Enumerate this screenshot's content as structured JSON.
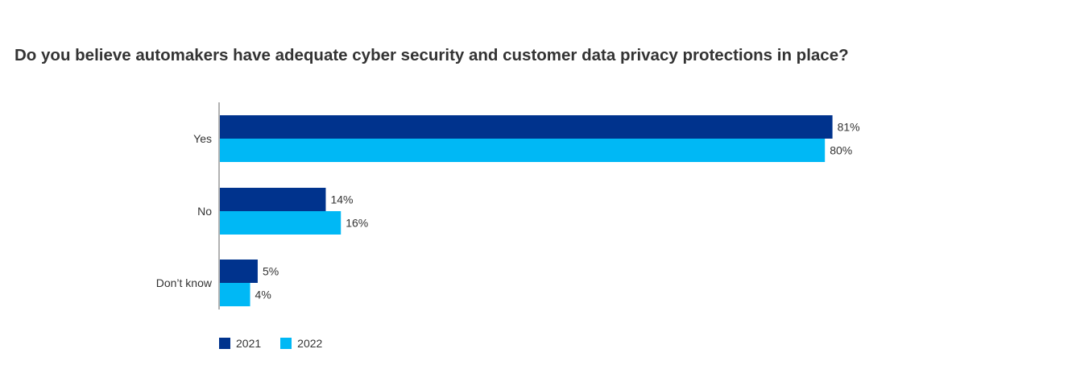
{
  "chart_data": {
    "type": "bar",
    "orientation": "horizontal",
    "title": "Do you believe automakers have adequate cyber security and customer data privacy protections in place?",
    "categories": [
      "Yes",
      "No",
      "Don’t know"
    ],
    "series": [
      {
        "name": "2021",
        "color": "#00338D",
        "values": [
          81,
          14,
          5
        ],
        "labels": [
          "81%",
          "14%",
          "5%"
        ]
      },
      {
        "name": "2022",
        "color": "#00B8F5",
        "values": [
          80,
          16,
          4
        ],
        "labels": [
          "80%",
          "16%",
          "4%"
        ]
      }
    ],
    "xlim": [
      0,
      100
    ],
    "grid": false,
    "legend_position": "bottom-left"
  }
}
